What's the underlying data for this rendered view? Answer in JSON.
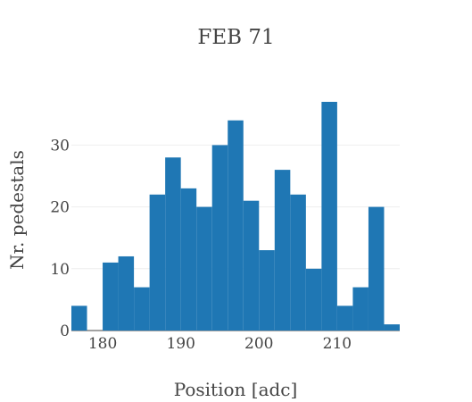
{
  "chart_data": {
    "type": "bar",
    "title": "FEB 71",
    "xlabel": "Position [adc]",
    "ylabel": "Nr. pedestals",
    "bin_width": 2,
    "bins": [
      {
        "x0": 176,
        "x1": 178,
        "count": 4
      },
      {
        "x0": 178,
        "x1": 180,
        "count": 0
      },
      {
        "x0": 180,
        "x1": 182,
        "count": 11
      },
      {
        "x0": 182,
        "x1": 184,
        "count": 12
      },
      {
        "x0": 184,
        "x1": 186,
        "count": 7
      },
      {
        "x0": 186,
        "x1": 188,
        "count": 22
      },
      {
        "x0": 188,
        "x1": 190,
        "count": 28
      },
      {
        "x0": 190,
        "x1": 192,
        "count": 23
      },
      {
        "x0": 192,
        "x1": 194,
        "count": 20
      },
      {
        "x0": 194,
        "x1": 196,
        "count": 30
      },
      {
        "x0": 196,
        "x1": 198,
        "count": 34
      },
      {
        "x0": 198,
        "x1": 200,
        "count": 21
      },
      {
        "x0": 200,
        "x1": 202,
        "count": 13
      },
      {
        "x0": 202,
        "x1": 204,
        "count": 26
      },
      {
        "x0": 204,
        "x1": 206,
        "count": 22
      },
      {
        "x0": 206,
        "x1": 208,
        "count": 10
      },
      {
        "x0": 208,
        "x1": 210,
        "count": 37
      },
      {
        "x0": 210,
        "x1": 212,
        "count": 4
      },
      {
        "x0": 212,
        "x1": 214,
        "count": 7
      },
      {
        "x0": 214,
        "x1": 216,
        "count": 20
      },
      {
        "x0": 216,
        "x1": 218,
        "count": 1
      }
    ],
    "xlim": [
      176,
      218
    ],
    "ylim": [
      0,
      37
    ],
    "xticks": [
      180,
      190,
      200,
      210
    ],
    "yticks": [
      0,
      10,
      20,
      30
    ],
    "grid": "horizontal",
    "legend": "none",
    "bar_color": "#1f77b4",
    "grid_color": "#eeeeee",
    "text_color": "#444444"
  }
}
